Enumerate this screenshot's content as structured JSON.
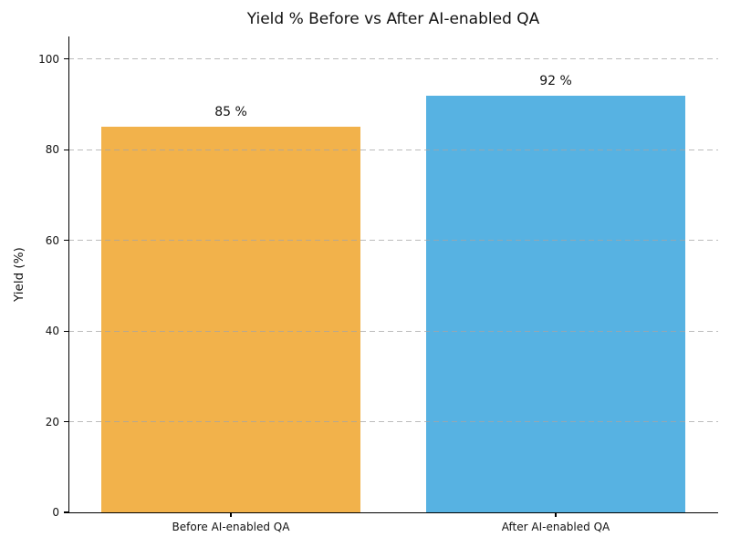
{
  "chart_data": {
    "type": "bar",
    "title": "Yield % Before vs After AI-enabled QA",
    "categories": [
      "Before AI-enabled QA",
      "After AI-enabled QA"
    ],
    "values": [
      85,
      92
    ],
    "value_labels": [
      "85 %",
      "92 %"
    ],
    "bar_colors": [
      "#F2B24B",
      "#57B2E2"
    ],
    "xlabel": "",
    "ylabel": "Yield (%)",
    "ylim": [
      0,
      105
    ],
    "yticks": [
      0,
      20,
      40,
      60,
      80,
      100
    ],
    "grid": "horizontal dashed, drawn above bars",
    "grid_color": "#A5A5A5",
    "axis_color": "#000000",
    "legend": "none"
  }
}
